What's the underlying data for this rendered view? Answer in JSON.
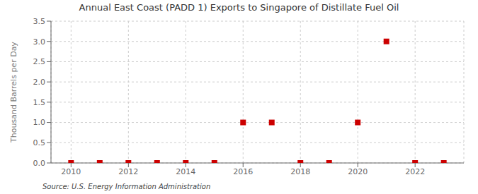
{
  "chart_data": {
    "type": "scatter",
    "title": "Annual East Coast (PADD 1) Exports to Singapore of Distillate Fuel Oil",
    "ylabel": "Thousand Barrels per Day",
    "annotation": "Source: U.S. Energy Information Administration",
    "x": [
      2010,
      2011,
      2012,
      2013,
      2014,
      2015,
      2016,
      2017,
      2018,
      2019,
      2020,
      2021,
      2022,
      2023
    ],
    "values": [
      0.0,
      0.0,
      0.0,
      0.0,
      0.0,
      0.0,
      1.0,
      1.0,
      0.0,
      0.0,
      1.0,
      3.0,
      0.0,
      0.0
    ],
    "color": "#cc0000",
    "marker": "square",
    "xlim": [
      2009.3,
      2023.7
    ],
    "xticks": [
      2010,
      2012,
      2014,
      2016,
      2018,
      2020,
      2022
    ],
    "ylim": [
      0,
      3.5
    ],
    "yticks": [
      {
        "value": 0,
        "label": "0.0"
      },
      0.5,
      {
        "value": 1,
        "label": "1.0"
      },
      1.5,
      {
        "value": 2,
        "label": "2.0"
      },
      2.5,
      {
        "value": 3,
        "label": "3.0"
      },
      3.5
    ],
    "grid": true
  }
}
